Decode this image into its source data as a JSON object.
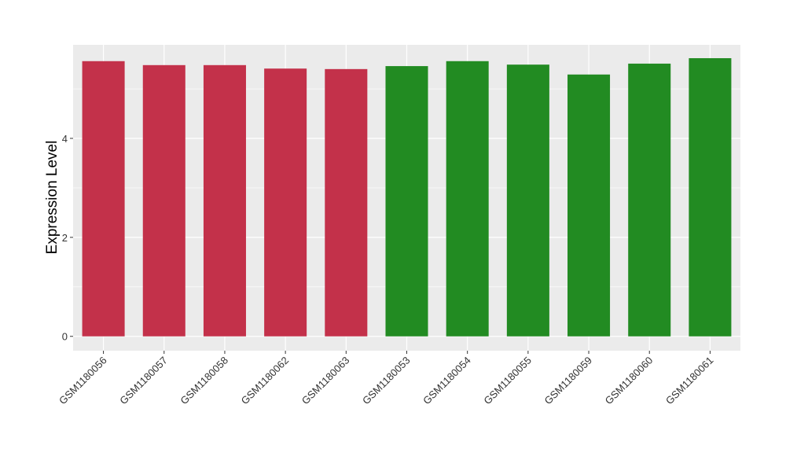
{
  "chart_data": {
    "type": "bar",
    "title": "",
    "xlabel": "",
    "ylabel": "Expression Level",
    "ylim": [
      -0.29,
      5.89
    ],
    "yticks": [
      0,
      2,
      4
    ],
    "grid": true,
    "categories": [
      "GSM1180056",
      "GSM1180057",
      "GSM1180058",
      "GSM1180062",
      "GSM1180063",
      "GSM1180053",
      "GSM1180054",
      "GSM1180055",
      "GSM1180059",
      "GSM1180060",
      "GSM1180061"
    ],
    "values": [
      5.56,
      5.48,
      5.48,
      5.41,
      5.4,
      5.46,
      5.56,
      5.49,
      5.29,
      5.51,
      5.62
    ],
    "bar_colors": [
      "#c3314a",
      "#c3314a",
      "#c3314a",
      "#c3314a",
      "#c3314a",
      "#228b22",
      "#228b22",
      "#228b22",
      "#228b22",
      "#228b22",
      "#228b22"
    ],
    "panel_background": "#ebebeb"
  }
}
